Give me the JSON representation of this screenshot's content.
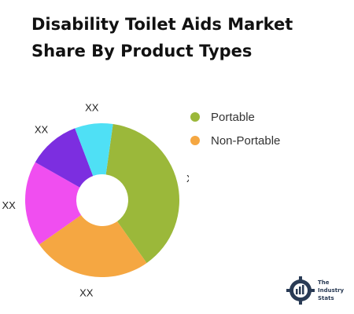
{
  "title": "Disability Toilet Aids Market Share By Product Types",
  "chart_data": {
    "type": "pie",
    "donut": true,
    "title": "Disability Toilet Aids Market Share By Product Types",
    "legend": [
      {
        "label": "Portable",
        "color": "#9bb83a"
      },
      {
        "label": "Non-Portable",
        "color": "#f5a742"
      }
    ],
    "slices": [
      {
        "value": 38,
        "color": "#9bb83a",
        "label": "XX"
      },
      {
        "value": 25,
        "color": "#f5a742",
        "label": "XX"
      },
      {
        "value": 18,
        "color": "#f04ef0",
        "label": "XX"
      },
      {
        "value": 11,
        "color": "#7c2ee0",
        "label": "XX"
      },
      {
        "value": 8,
        "color": "#4fe0f5",
        "label": "XX"
      }
    ]
  },
  "logo": {
    "line1": "The",
    "line2": "Industry",
    "line3": "Stats"
  }
}
